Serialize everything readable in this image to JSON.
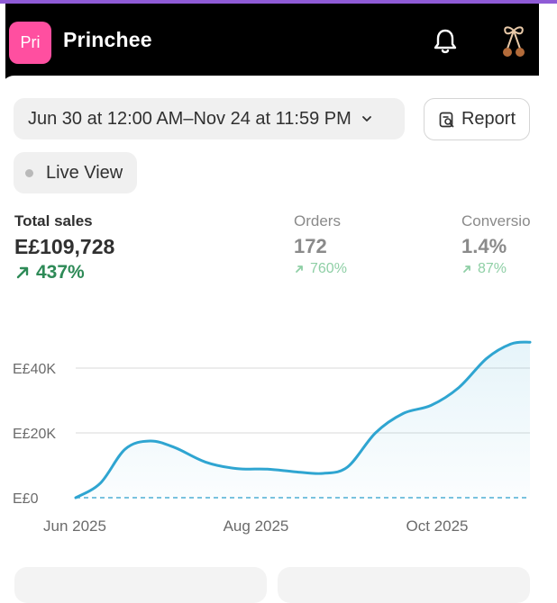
{
  "app": {
    "avatar_text": "Pri",
    "store_name": "Princhee"
  },
  "icons": {
    "notifications": "bell-icon",
    "profile": "cherry-bow-icon",
    "report": "report-search-icon",
    "delta": "arrow-up-right-icon"
  },
  "filters": {
    "date_range": "Jun 30 at 12:00 AM–Nov 24 at 11:59 PM",
    "report_label": "Report",
    "live_view_label": "Live View"
  },
  "metrics": [
    {
      "label": "Total sales",
      "value": "E£109,728",
      "change": "437%"
    },
    {
      "label": "Orders",
      "value": "172",
      "change": "760%"
    },
    {
      "label": "Conversio",
      "value": "1.4%",
      "change": "87%"
    }
  ],
  "colors": {
    "accent_line": "#2fa5d1",
    "positive": "#2e8a57",
    "positive_muted": "#8ecfa5",
    "avatar": "#ff4fa0"
  },
  "chart_data": {
    "type": "line",
    "x_ticks": [
      "Jun 2025",
      "Aug 2025",
      "Oct 2025"
    ],
    "y_ticks": [
      "E£0",
      "E£20K",
      "E£40K"
    ],
    "ylim": [
      0,
      50000
    ],
    "series": [
      {
        "x": [
          "2025-06-30",
          "2025-07-08",
          "2025-07-16",
          "2025-07-24",
          "2025-08-01",
          "2025-08-11",
          "2025-08-21",
          "2025-08-31",
          "2025-09-09",
          "2025-09-18",
          "2025-09-26",
          "2025-10-05",
          "2025-10-14",
          "2025-10-23",
          "2025-11-01",
          "2025-11-10",
          "2025-11-18",
          "2025-11-24"
        ],
        "values": [
          0,
          4500,
          15000,
          17500,
          15500,
          11000,
          9000,
          8800,
          8000,
          7500,
          9500,
          20000,
          26000,
          28500,
          34000,
          43000,
          47500,
          48000
        ]
      }
    ]
  }
}
